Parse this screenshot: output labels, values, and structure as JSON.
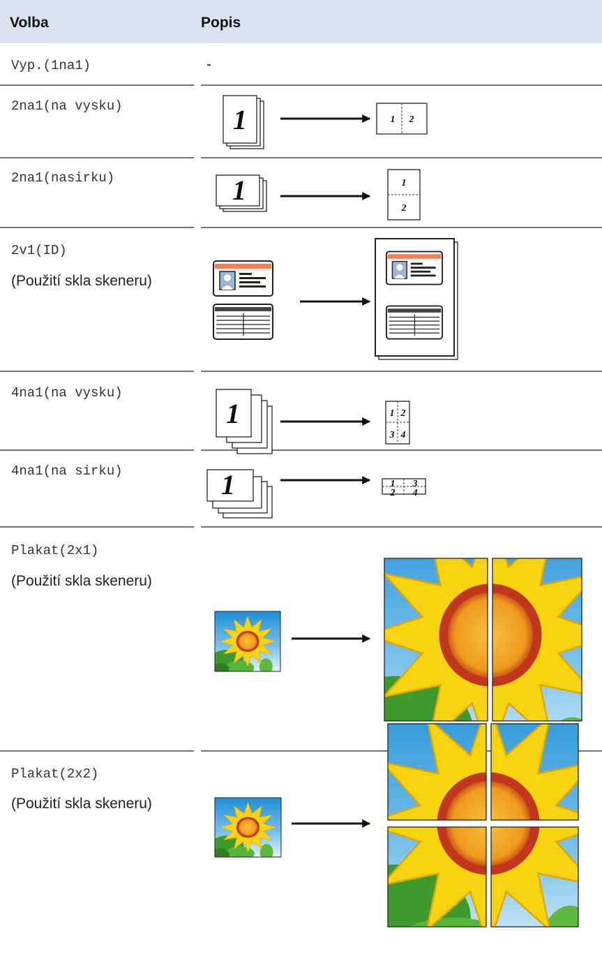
{
  "table": {
    "header": [
      "Volba",
      "Popis"
    ],
    "rows": [
      {
        "option": "Vyp.(1na1)",
        "description": "-"
      },
      {
        "option": "2na1(na vysku)",
        "source": "1",
        "result": [
          "1",
          "2"
        ]
      },
      {
        "option": "2na1(nasirku)",
        "source": "1",
        "result": [
          "1",
          "2"
        ]
      },
      {
        "option": "2v1(ID)",
        "note": "(Použití skla skeneru)"
      },
      {
        "option": "4na1(na vysku)",
        "source": "1",
        "result": [
          "1",
          "2",
          "3",
          "4"
        ]
      },
      {
        "option": "4na1(na sirku)",
        "source": "1",
        "result": [
          "1",
          "3",
          "2",
          "4"
        ]
      },
      {
        "option": "Plakat(2x1)",
        "note": "(Použití skla skeneru)"
      },
      {
        "option": "Plakat(2x2)",
        "note": "(Použití skla skeneru)"
      }
    ]
  }
}
